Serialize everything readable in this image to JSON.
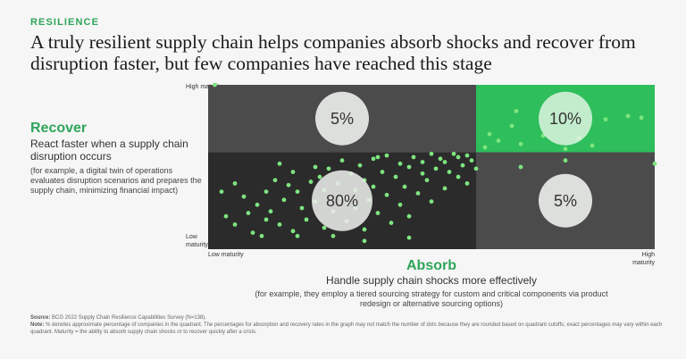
{
  "tag": "RESILIENCE",
  "headline": "A truly resilient supply chain helps companies absorb shocks and recover from disruption faster, but few companies have reached this stage",
  "recover": {
    "title": "Recover",
    "desc": "React faster when a supply chain disruption occurs",
    "example": "(for example, a digital twin of operations evaluates disruption scenarios and prepares the supply chain, minimizing financial impact)"
  },
  "absorb": {
    "title": "Absorb",
    "desc": "Handle supply chain shocks more effectively",
    "example": "(for example, they employ a tiered sourcing strategy for custom and critical components via product redesign or alternative sourcing options)"
  },
  "footnotes": {
    "source_label": "Source:",
    "source": "BCG 2022 Supply Chain Resilience Capabilities Survey (N=138).",
    "note_label": "Note:",
    "note": "% denotes approximate percentage of companies in the quadrant. The percentages for absorption and recovery rates in the graph may not match the number of dots because they are rounded based on quadrant cutoffs; exact percentages may vary within each quadrant. Maturity = the ability to absorb supply chain shocks or to recover quickly after a crisis."
  },
  "colors": {
    "accent": "#2fa55a",
    "dot": "#7ee57f",
    "q_top_left": "#4b4b4b",
    "q_top_right": "#2ebe5b",
    "q_bottom_left": "#2b2b2b",
    "q_bottom_right": "#4b4b4b",
    "circle": "#e9ece8",
    "circle_on_green": "#e4f7e7"
  },
  "chart_data": {
    "type": "scatter",
    "xlabel": "Absorb",
    "ylabel": "Recover",
    "xlim": [
      0,
      1
    ],
    "ylim": [
      0,
      1
    ],
    "grid": false,
    "x_ticks": [
      {
        "position": "start",
        "label": "Low maturity"
      },
      {
        "position": "end",
        "label": "High maturity"
      }
    ],
    "y_ticks": [
      {
        "position": "end",
        "label": "High maturity"
      },
      {
        "position": "start",
        "label": "Low maturity"
      }
    ],
    "quadrant_cutoffs": {
      "x": 0.6,
      "y": 0.59
    },
    "quadrants": [
      {
        "name": "top-left",
        "label": "5%"
      },
      {
        "name": "top-right",
        "label": "10%"
      },
      {
        "name": "bottom-left",
        "label": "80%"
      },
      {
        "name": "bottom-right",
        "label": "5%"
      }
    ],
    "points": [
      [
        0.015,
        1.0
      ],
      [
        0.03,
        0.35
      ],
      [
        0.06,
        0.4
      ],
      [
        0.04,
        0.2
      ],
      [
        0.08,
        0.32
      ],
      [
        0.06,
        0.15
      ],
      [
        0.09,
        0.22
      ],
      [
        0.11,
        0.27
      ],
      [
        0.13,
        0.35
      ],
      [
        0.15,
        0.42
      ],
      [
        0.14,
        0.23
      ],
      [
        0.16,
        0.15
      ],
      [
        0.17,
        0.3
      ],
      [
        0.18,
        0.39
      ],
      [
        0.19,
        0.47
      ],
      [
        0.2,
        0.35
      ],
      [
        0.21,
        0.25
      ],
      [
        0.22,
        0.18
      ],
      [
        0.23,
        0.41
      ],
      [
        0.24,
        0.29
      ],
      [
        0.25,
        0.44
      ],
      [
        0.26,
        0.36
      ],
      [
        0.26,
        0.13
      ],
      [
        0.27,
        0.49
      ],
      [
        0.28,
        0.23
      ],
      [
        0.29,
        0.4
      ],
      [
        0.3,
        0.31
      ],
      [
        0.3,
        0.54
      ],
      [
        0.31,
        0.17
      ],
      [
        0.32,
        0.46
      ],
      [
        0.33,
        0.36
      ],
      [
        0.33,
        0.25
      ],
      [
        0.34,
        0.51
      ],
      [
        0.35,
        0.42
      ],
      [
        0.35,
        0.12
      ],
      [
        0.36,
        0.3
      ],
      [
        0.37,
        0.55
      ],
      [
        0.37,
        0.38
      ],
      [
        0.38,
        0.22
      ],
      [
        0.39,
        0.47
      ],
      [
        0.4,
        0.33
      ],
      [
        0.4,
        0.57
      ],
      [
        0.41,
        0.16
      ],
      [
        0.42,
        0.44
      ],
      [
        0.43,
        0.52
      ],
      [
        0.43,
        0.27
      ],
      [
        0.44,
        0.38
      ],
      [
        0.45,
        0.5
      ],
      [
        0.45,
        0.2
      ],
      [
        0.46,
        0.56
      ],
      [
        0.47,
        0.34
      ],
      [
        0.48,
        0.46
      ],
      [
        0.48,
        0.53
      ],
      [
        0.49,
        0.42
      ],
      [
        0.5,
        0.58
      ],
      [
        0.5,
        0.29
      ],
      [
        0.51,
        0.49
      ],
      [
        0.52,
        0.55
      ],
      [
        0.53,
        0.37
      ],
      [
        0.53,
        0.53
      ],
      [
        0.54,
        0.47
      ],
      [
        0.55,
        0.58
      ],
      [
        0.56,
        0.56
      ],
      [
        0.56,
        0.44
      ],
      [
        0.57,
        0.51
      ],
      [
        0.58,
        0.57
      ],
      [
        0.58,
        0.4
      ],
      [
        0.59,
        0.54
      ],
      [
        0.6,
        0.49
      ],
      [
        0.35,
        0.05
      ],
      [
        0.2,
        0.08
      ],
      [
        0.1,
        0.1
      ],
      [
        0.12,
        0.08
      ],
      [
        0.28,
        0.08
      ],
      [
        0.45,
        0.07
      ],
      [
        0.38,
        0.56
      ],
      [
        0.24,
        0.5
      ],
      [
        0.16,
        0.52
      ],
      [
        0.62,
        0.62
      ],
      [
        0.63,
        0.7
      ],
      [
        0.65,
        0.66
      ],
      [
        0.68,
        0.75
      ],
      [
        0.7,
        0.64
      ],
      [
        0.75,
        0.69
      ],
      [
        0.8,
        0.61
      ],
      [
        0.83,
        0.68
      ],
      [
        0.86,
        0.63
      ],
      [
        0.89,
        0.79
      ],
      [
        0.69,
        0.84
      ],
      [
        0.94,
        0.81
      ],
      [
        0.97,
        0.8
      ],
      [
        1.0,
        0.52
      ],
      [
        0.7,
        0.5
      ],
      [
        0.8,
        0.54
      ],
      [
        0.13,
        0.18
      ],
      [
        0.19,
        0.11
      ]
    ]
  }
}
